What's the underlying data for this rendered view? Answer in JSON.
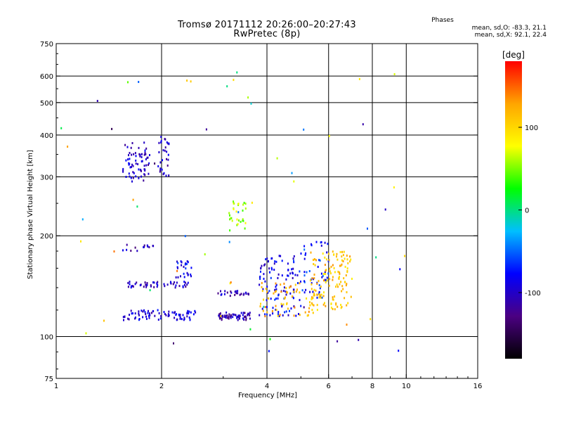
{
  "chart_data": {
    "type": "scatter",
    "title": "Tromsø 20171112 20:26:00–20:27:43",
    "subtitle": "RwPretec (8p)",
    "xlabel": "Frequency [MHz]",
    "ylabel": "Stationary phase Virtual Height [km]",
    "x_scale": "log",
    "y_scale": "log",
    "xlim": [
      1,
      16
    ],
    "ylim": [
      75,
      750
    ],
    "x_ticks": [
      1,
      2,
      4,
      6,
      8,
      10,
      16
    ],
    "x_tick_labels": [
      "1",
      "2",
      "4",
      "6",
      "8",
      "10",
      "16"
    ],
    "y_ticks": [
      75,
      100,
      200,
      300,
      400,
      500,
      600,
      750
    ],
    "y_tick_labels": [
      "75",
      "100",
      "200",
      "300",
      "400",
      "500",
      "600",
      "750"
    ],
    "grid": true,
    "phase_stats": {
      "heading": "Phases",
      "o_line": "mean, sd,O: -83.3, 21.1",
      "x_line": "mean, sd,X:  92.1, 22.4"
    },
    "colorbar": {
      "label": "[deg]",
      "range": [
        -180,
        180
      ],
      "ticks": [
        100,
        0,
        -100
      ],
      "tick_labels": [
        "100",
        "0",
        "-100"
      ],
      "colormap": [
        "#000000",
        "#4b0082",
        "#0000ff",
        "#00bfff",
        "#00ff00",
        "#ffff00",
        "#ffa500",
        "#ff0000"
      ]
    },
    "clusters": [
      {
        "x": [
          1.55,
          1.85
        ],
        "y": [
          290,
          380
        ],
        "phase": -100,
        "n": 70
      },
      {
        "x": [
          1.95,
          2.1
        ],
        "y": [
          300,
          400
        ],
        "phase": -100,
        "n": 30
      },
      {
        "x": [
          1.55,
          1.9
        ],
        "y": [
          180,
          190
        ],
        "phase": -110,
        "n": 14
      },
      {
        "x": [
          1.6,
          2.4
        ],
        "y": [
          140,
          146
        ],
        "phase": -100,
        "n": 50
      },
      {
        "x": [
          1.55,
          2.5
        ],
        "y": [
          112,
          120
        ],
        "phase": -95,
        "n": 80
      },
      {
        "x": [
          2.2,
          2.45
        ],
        "y": [
          150,
          170
        ],
        "phase": -80,
        "n": 25
      },
      {
        "x": [
          2.9,
          3.6
        ],
        "y": [
          112,
          118
        ],
        "phase": -110,
        "n": 60
      },
      {
        "x": [
          2.9,
          3.6
        ],
        "y": [
          132,
          137
        ],
        "phase": -105,
        "n": 25
      },
      {
        "x": [
          3.1,
          3.5
        ],
        "y": [
          205,
          255
        ],
        "phase": 60,
        "n": 30
      },
      {
        "x": [
          3.8,
          5.0
        ],
        "y": [
          115,
          175
        ],
        "phase": -85,
        "n": 110
      },
      {
        "x": [
          5.0,
          6.0
        ],
        "y": [
          130,
          195
        ],
        "phase": -70,
        "n": 50
      },
      {
        "x": [
          3.8,
          5.5
        ],
        "y": [
          115,
          145
        ],
        "phase": 120,
        "n": 60
      },
      {
        "x": [
          5.3,
          7.0
        ],
        "y": [
          120,
          180
        ],
        "phase": 110,
        "n": 130
      },
      {
        "x": [
          1.0,
          10.0
        ],
        "y": [
          90,
          620
        ],
        "phase": 0,
        "n": 60
      }
    ]
  }
}
